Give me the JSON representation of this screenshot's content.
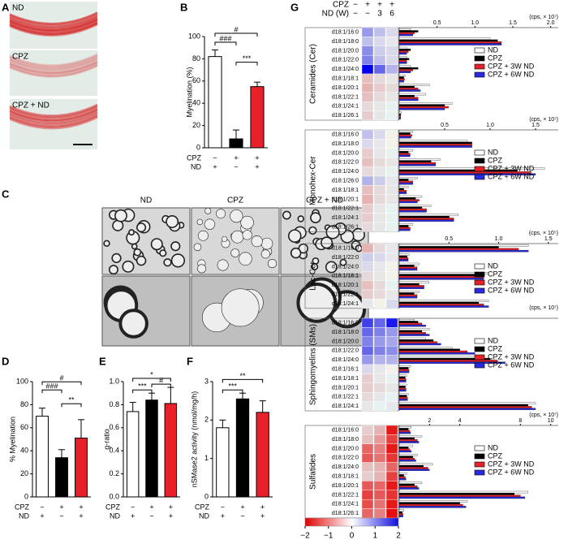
{
  "figure": {
    "panel_labels": [
      "A",
      "B",
      "C",
      "D",
      "E",
      "F",
      "G"
    ],
    "a_labels": [
      "ND",
      "CPZ",
      "CPZ + ND"
    ],
    "c_labels": [
      "ND",
      "CPZ",
      "CPZ + ND"
    ]
  },
  "chart_data": [
    {
      "type": "bar",
      "ylabel": "Myelination (%)",
      "ylim": [
        0,
        100
      ],
      "yticks": [
        0,
        20,
        40,
        60,
        80,
        100
      ],
      "values": [
        82,
        8,
        55
      ],
      "errors": [
        6,
        8,
        4
      ],
      "colors": [
        "#ffffff",
        "#000000",
        "#e8202a"
      ],
      "conditions": [
        {
          "name": "CPZ",
          "signs": [
            "−",
            "+",
            "+"
          ]
        },
        {
          "name": "ND",
          "signs": [
            "+",
            "−",
            "+"
          ]
        }
      ],
      "annotations": [
        "###",
        "#",
        "***"
      ]
    },
    {
      "type": "bar",
      "ylabel": "% Myelination",
      "ylim": [
        0,
        100
      ],
      "yticks": [
        0,
        20,
        40,
        60,
        80,
        100
      ],
      "values": [
        70,
        34,
        51
      ],
      "errors": [
        7,
        7,
        16
      ],
      "colors": [
        "#ffffff",
        "#000000",
        "#e8202a"
      ],
      "conditions": [
        {
          "name": "CPZ",
          "signs": [
            "−",
            "+",
            "+"
          ]
        },
        {
          "name": "ND",
          "signs": [
            "+",
            "−",
            "+"
          ]
        }
      ],
      "annotations": [
        "###",
        "#",
        "**"
      ]
    },
    {
      "type": "bar",
      "ylabel": "g-ratio",
      "ylim": [
        0,
        1
      ],
      "yticks": [
        {
          "value": 0,
          "label": "0.0"
        },
        {
          "value": 0.2,
          "label": "0.2"
        },
        {
          "value": 0.4,
          "label": "0.4"
        },
        {
          "value": 0.6,
          "label": "0.6"
        },
        {
          "value": 0.8,
          "label": "0.8"
        },
        {
          "value": 1,
          "label": "1.0"
        }
      ],
      "values": [
        0.74,
        0.84,
        0.81
      ],
      "errors": [
        0.08,
        0.06,
        0.14
      ],
      "colors": [
        "#ffffff",
        "#000000",
        "#e8202a"
      ],
      "conditions": [
        {
          "name": "CPZ",
          "signs": [
            "−",
            "+",
            "+"
          ]
        },
        {
          "name": "ND",
          "signs": [
            "+",
            "−",
            "+"
          ]
        }
      ],
      "annotations": [
        "***",
        "*",
        "#"
      ]
    },
    {
      "type": "bar",
      "ylabel": "nSMase2 activity (nmol/mg/h)",
      "ylim": [
        0,
        3
      ],
      "yticks": [
        0,
        1,
        2,
        3
      ],
      "values": [
        1.8,
        2.55,
        2.2
      ],
      "errors": [
        0.2,
        0.15,
        0.3
      ],
      "colors": [
        "#ffffff",
        "#000000",
        "#e8202a"
      ],
      "conditions": [
        {
          "name": "CPZ",
          "signs": [
            "−",
            "+",
            "+"
          ]
        },
        {
          "name": "ND",
          "signs": [
            "+",
            "−",
            "+"
          ]
        }
      ],
      "annotations": [
        "***",
        "**"
      ]
    },
    {
      "type": "heatmap-bar",
      "header": [
        {
          "name": "CPZ",
          "signs": [
            "−",
            "+",
            "+",
            "+"
          ]
        },
        {
          "name": "ND (W)",
          "signs": [
            "−",
            "−",
            "3",
            "6"
          ]
        }
      ],
      "series": [
        {
          "name": "ND",
          "color": "#ffffff"
        },
        {
          "name": "CPZ",
          "color": "#000000"
        },
        {
          "name": "CPZ + 3W ND",
          "color": "#e8202a"
        },
        {
          "name": "CPZ + 6W ND",
          "color": "#2a2ae0"
        }
      ],
      "colorbar": {
        "lim": [
          -2,
          2
        ],
        "ticks": [
          {
            "value": -2,
            "label": "−2"
          },
          {
            "value": -1,
            "label": "−1"
          },
          0,
          1,
          2
        ]
      },
      "groups": [
        {
          "name": "Ceramides (Cer)",
          "unit": "(cps, × 10⁷)",
          "xlim": [
            0,
            2.1
          ],
          "xticks": [
            0.5,
            {
              "value": 1,
              "label": "1.0"
            },
            1.5,
            {
              "value": 2,
              "label": "2.0"
            }
          ],
          "rows": [
            "d18:1/16:0",
            "d18:1/18:0",
            "d18:1/20:0",
            "d18:1/22:0",
            "d18:1/24:0",
            "d18:1/18:1",
            "d18:1/20:1",
            "d18:1/22:1",
            "d18:1/24:1",
            "d18:1/26:1"
          ],
          "heat": [
            [
              0.8,
              0.5,
              0.3
            ],
            [
              0.5,
              0.3,
              0.2
            ],
            [
              0.9,
              0.4,
              0.3
            ],
            [
              1,
              0.5,
              0.3
            ],
            [
              2,
              1.2,
              0.6
            ],
            [
              -0.5,
              -0.3,
              -0.2
            ],
            [
              -0.6,
              -0.4,
              -0.3
            ],
            [
              -0.5,
              -0.3,
              -0.2
            ],
            [
              -0.3,
              -0.2,
              -0.1
            ],
            [
              -0.4,
              -0.2,
              -0.1
            ]
          ],
          "values": [
            [
              0.15,
              0.25,
              0.2,
              0.18
            ],
            [
              1.2,
              1.3,
              1.35,
              1.35
            ],
            [
              0.1,
              0.15,
              0.12,
              0.1
            ],
            [
              0.1,
              0.13,
              0.1,
              0.1
            ],
            [
              0.15,
              0.25,
              0.18,
              0.15
            ],
            [
              0.08,
              0.06,
              0.07,
              0.06
            ],
            [
              0.4,
              0.2,
              0.25,
              0.28
            ],
            [
              0.35,
              0.2,
              0.25,
              0.25
            ],
            [
              0.7,
              0.6,
              0.65,
              0.6
            ],
            [
              0.03,
              0.02,
              0.02,
              0.02
            ]
          ]
        },
        {
          "name": "Monohex-Cer",
          "unit": "(cps, × 10⁷)",
          "xlim": [
            0,
            1.75
          ],
          "xticks": [
            0.5,
            {
              "value": 1,
              "label": "1.0"
            },
            1.5
          ],
          "rows": [
            "d18:1/16:0",
            "d18:1/18:0",
            "d18:1/20:0",
            "d18:1/22:0",
            "d18:1/24:0",
            "d18:1/26:0",
            "d18:1/18:1",
            "d18:1/20:1",
            "d18:1/22:1",
            "d18:1/24:1",
            "d18:1/26:1"
          ],
          "heat": [
            [
              0.5,
              0.3,
              0.1
            ],
            [
              0.3,
              0.2,
              0.1
            ],
            [
              -0.4,
              -0.2,
              -0.1
            ],
            [
              -0.5,
              -0.3,
              -0.2
            ],
            [
              -0.3,
              -0.2,
              -0.1
            ],
            [
              0.6,
              0.4,
              0.2
            ],
            [
              -0.5,
              -0.3,
              -0.2
            ],
            [
              -0.6,
              -0.3,
              -0.2
            ],
            [
              -0.4,
              -0.2,
              -0.1
            ],
            [
              -0.4,
              -0.2,
              -0.1
            ],
            [
              -0.3,
              -0.2,
              -0.1
            ]
          ],
          "values": [
            [
              0.15,
              0.12,
              0.14,
              0.13
            ],
            [
              0.75,
              0.8,
              0.8,
              0.8
            ],
            [
              0.15,
              0.1,
              0.12,
              0.12
            ],
            [
              0.45,
              0.35,
              0.4,
              0.4
            ],
            [
              1.6,
              1.3,
              1.45,
              1.5
            ],
            [
              0.2,
              0.1,
              0.15,
              0.15
            ],
            [
              0.1,
              0.05,
              0.08,
              0.08
            ],
            [
              0.25,
              0.18,
              0.22,
              0.2
            ],
            [
              0.35,
              0.25,
              0.3,
              0.3
            ],
            [
              0.65,
              0.55,
              0.6,
              0.6
            ],
            [
              0.15,
              0.1,
              0.12,
              0.12
            ]
          ]
        },
        {
          "name": "Lac-Cer",
          "unit": "(cps, × 10⁵)",
          "xlim": [
            0,
            1.6
          ],
          "xticks": [
            0.5,
            {
              "value": 1,
              "label": "1.0"
            },
            1.5
          ],
          "rows": [
            "d18:1/16:0",
            "d18:1/22:0",
            "d18:1/24:0",
            "d18:1/18:1",
            "d18:1/20:1",
            "d18:1/22:1",
            "d18:1/24:1"
          ],
          "heat": [
            [
              -0.6,
              -0.3,
              0.2
            ],
            [
              0.4,
              0.3,
              0.2
            ],
            [
              0.3,
              0.2,
              0.1
            ],
            [
              -0.3,
              -0.2,
              0.1
            ],
            [
              -0.5,
              -0.3,
              -0.1
            ],
            [
              -0.4,
              -0.3,
              -0.2
            ],
            [
              0.2,
              0.1,
              0.3
            ]
          ],
          "values": [
            [
              1.3,
              1,
              1.2,
              1.3
            ],
            [
              0.1,
              0.08,
              0.09,
              0.09
            ],
            [
              0.2,
              0.15,
              0.18,
              0.18
            ],
            [
              0.9,
              0.8,
              0.85,
              0.85
            ],
            [
              0.3,
              0.2,
              0.25,
              0.25
            ],
            [
              0.2,
              0.15,
              0.18,
              0.18
            ],
            [
              0.9,
              0.8,
              0.85,
              0.9
            ]
          ]
        },
        {
          "name": "Sphingomyelins (SMs)",
          "unit": "(cps, × 10⁷)",
          "xlim": [
            0,
            2.1
          ],
          "xticks": [],
          "rows": [
            "d18:1/16:0",
            "d18:1/18:0",
            "d18:1/20:0",
            "d18:1/22:0",
            "d18:1/24:0",
            "d18:1/16:1",
            "d18:1/18:1",
            "d18:1/20:1",
            "d18:1/22:1",
            "d18:1/24:1"
          ],
          "heat": [
            [
              1.5,
              1.2,
              1.8
            ],
            [
              1.2,
              1,
              0.8
            ],
            [
              1,
              0.8,
              0.7
            ],
            [
              1.2,
              1,
              0.9
            ],
            [
              0.8,
              0.6,
              0.6
            ],
            [
              0.3,
              0.2,
              0.1
            ],
            [
              -0.4,
              -0.2,
              -0.1
            ],
            [
              -0.4,
              -0.3,
              -0.2
            ],
            [
              -0.3,
              -0.2,
              -0.1
            ],
            [
              -0.2,
              -0.1,
              0.2
            ]
          ],
          "values": [
            [
              0.2,
              0.25,
              0.3,
              0.35
            ],
            [
              0.4,
              0.3,
              0.35,
              0.4
            ],
            [
              0.35,
              0.45,
              0.5,
              0.55
            ],
            [
              0.7,
              0.8,
              0.9,
              1
            ],
            [
              1,
              1.2,
              1.3,
              1.4
            ],
            [
              0.15,
              0.12,
              0.13,
              0.13
            ],
            [
              0.1,
              0.08,
              0.09,
              0.09
            ],
            [
              0.1,
              0.08,
              0.09,
              0.09
            ],
            [
              0.12,
              0.1,
              0.11,
              0.11
            ],
            [
              1.8,
              1.7,
              1.75,
              1.8
            ]
          ]
        },
        {
          "name": "Sulfatides",
          "unit": "(cps, × 10⁷)",
          "xlim": [
            0,
            10.5
          ],
          "xticks": [
            2,
            4,
            8,
            10
          ],
          "rows": [
            "d18:1/16:0",
            "d18:1/18:0",
            "d18:1/20:0",
            "d18:1/22:0",
            "d18:1/24:0",
            "d18:1/18:1",
            "d18:1/20:1",
            "d18:1/22:1",
            "d18:1/24:1",
            "d18:1/26:1"
          ],
          "heat": [
            [
              -0.4,
              -0.6,
              -1.8
            ],
            [
              -0.5,
              -0.8,
              -1.5
            ],
            [
              -1.2,
              -1,
              -1.8
            ],
            [
              -1.3,
              -1.1,
              -1.6
            ],
            [
              -0.5,
              -0.6,
              -1.2
            ],
            [
              -0.4,
              -0.6,
              -1.5
            ],
            [
              -1.3,
              -1.2,
              -1.8
            ],
            [
              -1.5,
              -1.3,
              -1.6
            ],
            [
              -1.4,
              -1.1,
              -1.8
            ],
            [
              -1.2,
              -1,
              -1.9
            ]
          ],
          "values": [
            [
              0.8,
              0.6,
              0.7,
              0.75
            ],
            [
              1.5,
              1,
              1.2,
              1.3
            ],
            [
              0.9,
              0.6,
              0.7,
              0.8
            ],
            [
              1.2,
              0.9,
              1,
              1.1
            ],
            [
              2.2,
              1.6,
              1.9,
              2
            ],
            [
              0.5,
              0.3,
              0.4,
              0.45
            ],
            [
              1.5,
              1,
              1.2,
              1.3
            ],
            [
              8.5,
              7.6,
              8,
              8.3
            ],
            [
              4.5,
              4,
              4.2,
              4.4
            ],
            [
              0.3,
              0.2,
              0.25,
              0.25
            ]
          ]
        }
      ]
    }
  ]
}
